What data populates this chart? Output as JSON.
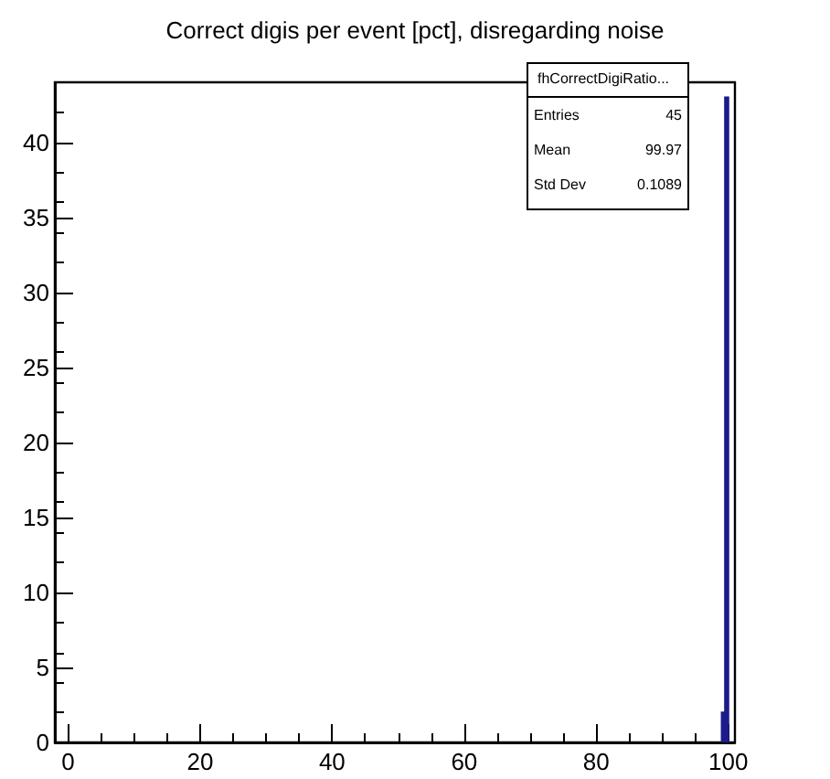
{
  "chart_data": {
    "type": "histogram",
    "title": "Correct digis per event [pct], disregarding noise",
    "bins": [
      99.0,
      99.5,
      100.0
    ],
    "values": [
      2,
      43
    ],
    "color": "#1c1c8c",
    "xlim": [
      -2,
      101
    ],
    "xticks": [
      0,
      20,
      40,
      60,
      80,
      100
    ],
    "ylim": [
      0,
      44
    ],
    "yticks": [
      0,
      5,
      10,
      15,
      20,
      25,
      30,
      35,
      40
    ],
    "grid": false,
    "annotations": [
      "fhCorrectDigiRatio...",
      "Entries",
      "45",
      "Mean",
      "99.97",
      "Std Dev",
      "0.1089"
    ]
  }
}
